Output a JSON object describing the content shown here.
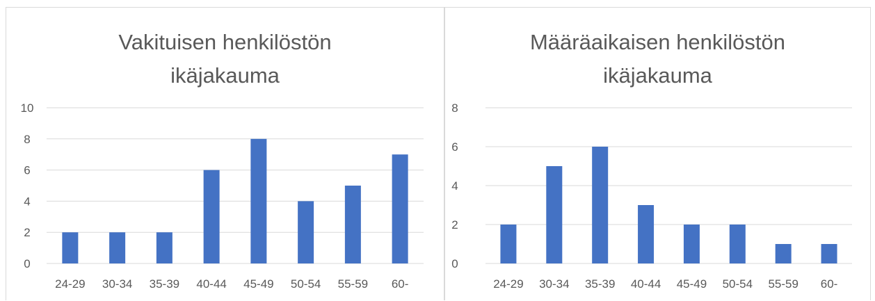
{
  "chart_data": [
    {
      "type": "bar",
      "title_lines": [
        "Vakituisen henkilöstön",
        "ikäjakauma"
      ],
      "categories": [
        "24-29",
        "30-34",
        "35-39",
        "40-44",
        "45-49",
        "50-54",
        "55-59",
        "60-"
      ],
      "values": [
        2,
        2,
        2,
        6,
        8,
        4,
        5,
        7
      ],
      "ylim": [
        0,
        10
      ],
      "yticks": [
        0,
        2,
        4,
        6,
        8,
        10
      ],
      "grid": true,
      "bar_color": "#4472c4"
    },
    {
      "type": "bar",
      "title_lines": [
        "Määräaikaisen henkilöstön",
        "ikäjakauma"
      ],
      "categories": [
        "24-29",
        "30-34",
        "35-39",
        "40-44",
        "45-49",
        "50-54",
        "55-59",
        "60-"
      ],
      "values": [
        2,
        5,
        6,
        3,
        2,
        2,
        1,
        1
      ],
      "ylim": [
        0,
        8
      ],
      "yticks": [
        0,
        2,
        4,
        6,
        8
      ],
      "grid": true,
      "bar_color": "#4472c4"
    }
  ]
}
